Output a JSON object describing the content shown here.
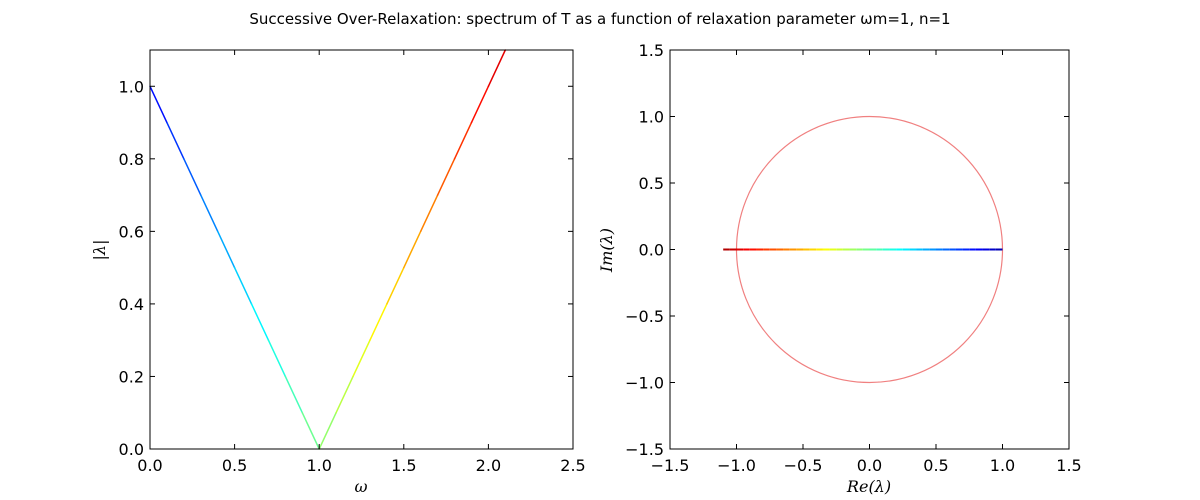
{
  "chart_data": [
    {
      "type": "line",
      "title": "Successive Over-Relaxation: spectrum of T as a function of relaxation parameter ωm=1, n=1",
      "xlabel": "ω",
      "ylabel": "|λ|",
      "xlim": [
        0.0,
        2.5
      ],
      "ylim": [
        0.0,
        1.1
      ],
      "xticks": [
        "0.0",
        "0.5",
        "1.0",
        "1.5",
        "2.0",
        "2.5"
      ],
      "yticks": [
        "0.0",
        "0.2",
        "0.4",
        "0.6",
        "0.8",
        "1.0"
      ],
      "colormap": "jet",
      "x": [
        0.0,
        0.1,
        0.2,
        0.3,
        0.4,
        0.5,
        0.6,
        0.7,
        0.8,
        0.9,
        1.0,
        1.1,
        1.2,
        1.3,
        1.4,
        1.5,
        1.6,
        1.7,
        1.8,
        1.9,
        2.0,
        2.1
      ],
      "y": [
        1.0,
        0.9,
        0.8,
        0.7,
        0.6,
        0.5,
        0.4,
        0.3,
        0.2,
        0.1,
        0.0,
        0.1,
        0.2,
        0.3,
        0.4,
        0.5,
        0.6,
        0.7,
        0.8,
        0.9,
        1.0,
        1.1
      ],
      "grid": false
    },
    {
      "type": "scatter",
      "xlabel": "Re(λ)",
      "ylabel": "Im(λ)",
      "xlim": [
        -1.5,
        1.5
      ],
      "ylim": [
        -1.5,
        1.5
      ],
      "xticks": [
        "−1.5",
        "−1.0",
        "−0.5",
        "0.0",
        "0.5",
        "1.0",
        "1.5"
      ],
      "yticks": [
        "−1.5",
        "−1.0",
        "−0.5",
        "0.0",
        "0.5",
        "1.0",
        "1.5"
      ],
      "colormap": "jet",
      "eigenvalue_re_range": [
        -1.1,
        1.0
      ],
      "eigenvalue_im": 0.0,
      "unit_circle": {
        "radius": 1.0,
        "center": [
          0.0,
          0.0
        ],
        "color": "#f08080"
      },
      "grid": false
    }
  ]
}
